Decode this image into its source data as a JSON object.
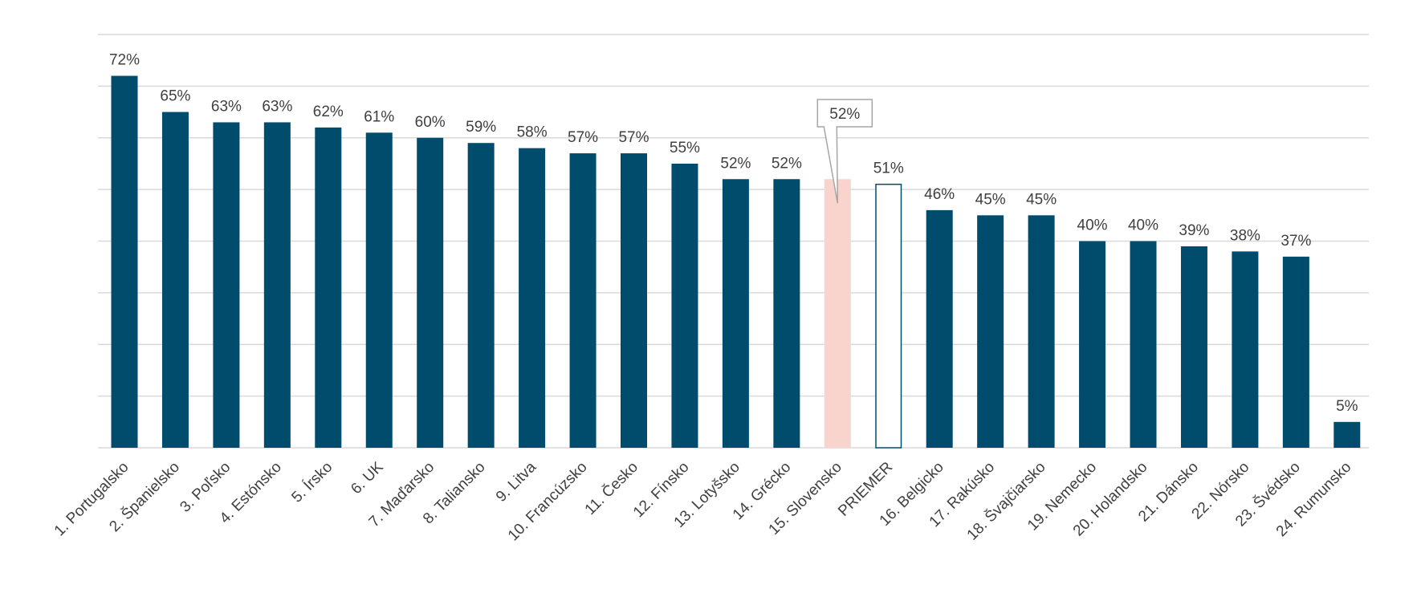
{
  "chart_data": {
    "type": "bar",
    "title": "",
    "xlabel": "",
    "ylabel": "",
    "ylim": [
      0,
      80
    ],
    "grid": true,
    "grid_step": 10,
    "categories": [
      "1. Portugalsko",
      "2. Španielsko",
      "3. Poľsko",
      "4. Estónsko",
      "5. Írsko",
      "6. UK",
      "7. Maďarsko",
      "8. Taliansko",
      "9. Litva",
      "10. Francúzsko",
      "11. Česko",
      "12. Fínsko",
      "13. Lotyšsko",
      "14. Grécko",
      "15. Slovensko",
      "PRIEMER",
      "16. Belgicko",
      "17. Rakúsko",
      "18. Švajčiarsko",
      "19. Nemecko",
      "20. Holandsko",
      "21. Dánsko",
      "22. Nórsko",
      "23. Švédsko",
      "24. Rumunsko"
    ],
    "values": [
      72,
      65,
      63,
      63,
      62,
      61,
      60,
      59,
      58,
      57,
      57,
      55,
      52,
      52,
      52,
      51,
      46,
      45,
      45,
      40,
      40,
      39,
      38,
      37,
      5
    ],
    "value_labels": [
      "72%",
      "65%",
      "63%",
      "63%",
      "62%",
      "61%",
      "60%",
      "59%",
      "58%",
      "57%",
      "57%",
      "55%",
      "52%",
      "52%",
      "52%",
      "51%",
      "46%",
      "45%",
      "45%",
      "40%",
      "40%",
      "39%",
      "38%",
      "37%",
      "5%"
    ],
    "highlight_index": 14,
    "average_index": 15,
    "callout_index": 14,
    "colors": {
      "bar": "#004c6d",
      "highlight": "#f9d4cd",
      "average_fill": "#ffffff",
      "average_stroke": "#004c6d",
      "grid": "#d9d9d9",
      "axis": "#d9d9d9",
      "text": "#404040",
      "callout_border": "#a6a6a6"
    }
  }
}
